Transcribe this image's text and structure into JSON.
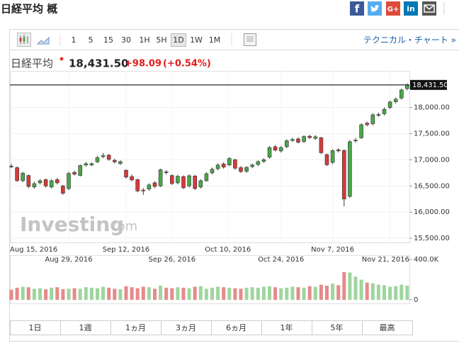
{
  "header": {
    "title": "日経平均 概",
    "share_labels": [
      "f",
      "G+",
      "in"
    ]
  },
  "toolbar": {
    "intervals": [
      "1",
      "5",
      "15",
      "30",
      "1H",
      "5H",
      "1D",
      "1W",
      "1M"
    ],
    "selected": "1D",
    "link": "テクニカル・チャート »"
  },
  "quote": {
    "name": "日経平均",
    "price": "18,431.50",
    "change": "+98.09",
    "change_percent": "(+0.54%)"
  },
  "chart_data": {
    "type": "candlestick",
    "x": [
      "2016-08-15",
      "2016-08-16",
      "2016-08-17",
      "2016-08-18",
      "2016-08-19",
      "2016-08-22",
      "2016-08-23",
      "2016-08-24",
      "2016-08-25",
      "2016-08-26",
      "2016-08-29",
      "2016-08-30",
      "2016-08-31",
      "2016-09-01",
      "2016-09-02",
      "2016-09-05",
      "2016-09-06",
      "2016-09-07",
      "2016-09-08",
      "2016-09-09",
      "2016-09-12",
      "2016-09-13",
      "2016-09-14",
      "2016-09-15",
      "2016-09-16",
      "2016-09-20",
      "2016-09-21",
      "2016-09-23",
      "2016-09-26",
      "2016-09-27",
      "2016-09-28",
      "2016-09-29",
      "2016-09-30",
      "2016-10-03",
      "2016-10-04",
      "2016-10-05",
      "2016-10-06",
      "2016-10-07",
      "2016-10-11",
      "2016-10-12",
      "2016-10-13",
      "2016-10-14",
      "2016-10-17",
      "2016-10-18",
      "2016-10-19",
      "2016-10-20",
      "2016-10-21",
      "2016-10-24",
      "2016-10-25",
      "2016-10-26",
      "2016-10-27",
      "2016-10-28",
      "2016-10-31",
      "2016-11-01",
      "2016-11-02",
      "2016-11-04",
      "2016-11-07",
      "2016-11-08",
      "2016-11-09",
      "2016-11-10",
      "2016-11-11",
      "2016-11-14",
      "2016-11-15",
      "2016-11-16",
      "2016-11-17",
      "2016-11-18",
      "2016-11-21",
      "2016-11-22",
      "2016-11-24",
      "2016-11-25"
    ],
    "open": [
      16880,
      16850,
      16600,
      16700,
      16480,
      16560,
      16620,
      16480,
      16620,
      16500,
      16450,
      16760,
      16700,
      16900,
      16900,
      16960,
      17060,
      17090,
      16990,
      16930,
      16800,
      16680,
      16620,
      16420,
      16440,
      16560,
      16500,
      16770,
      16700,
      16560,
      16680,
      16500,
      16690,
      16480,
      16600,
      16750,
      16830,
      16920,
      16900,
      17000,
      16850,
      16780,
      16870,
      16910,
      16970,
      17050,
      17250,
      17170,
      17250,
      17370,
      17400,
      17350,
      17450,
      17410,
      17420,
      17100,
      16950,
      17190,
      17180,
      16300,
      17370,
      17420,
      17700,
      17690,
      17850,
      17880,
      18000,
      18110,
      18180,
      18360
    ],
    "high": [
      16920,
      16870,
      16770,
      16720,
      16580,
      16630,
      16640,
      16630,
      16650,
      16520,
      16770,
      16790,
      16910,
      16960,
      16950,
      17070,
      17130,
      17110,
      17020,
      16990,
      16820,
      16720,
      16640,
      16460,
      16550,
      16590,
      16830,
      16800,
      16720,
      16710,
      16700,
      16720,
      16710,
      16630,
      16760,
      16850,
      16930,
      16950,
      17050,
      17020,
      16880,
      16880,
      16930,
      16990,
      17030,
      17260,
      17280,
      17260,
      17390,
      17420,
      17430,
      17470,
      17480,
      17470,
      17440,
      17120,
      17200,
      17220,
      17200,
      17380,
      17420,
      17700,
      17730,
      17890,
      17900,
      18000,
      18130,
      18190,
      18360,
      18460
    ],
    "low": [
      16840,
      16580,
      16570,
      16460,
      16450,
      16530,
      16470,
      16450,
      16530,
      16330,
      16420,
      16700,
      16680,
      16870,
      16880,
      16940,
      17030,
      16980,
      16930,
      16900,
      16640,
      16590,
      16380,
      16330,
      16410,
      16460,
      16480,
      16720,
      16520,
      16530,
      16440,
      16470,
      16420,
      16450,
      16580,
      16720,
      16800,
      16830,
      16880,
      16810,
      16750,
      16750,
      16840,
      16880,
      16940,
      17020,
      17160,
      17140,
      17220,
      17340,
      17310,
      17320,
      17400,
      17380,
      17110,
      16880,
      16920,
      17140,
      16110,
      16270,
      17330,
      17400,
      17640,
      17660,
      17820,
      17850,
      17970,
      18080,
      18150,
      18330
    ],
    "close": [
      16870,
      16600,
      16745,
      16490,
      16545,
      16600,
      16500,
      16600,
      16560,
      16360,
      16740,
      16725,
      16890,
      16925,
      16925,
      17040,
      17080,
      17010,
      16960,
      16965,
      16670,
      16615,
      16405,
      16405,
      16520,
      16490,
      16810,
      16755,
      16545,
      16685,
      16465,
      16695,
      16450,
      16600,
      16735,
      16820,
      16900,
      16860,
      17025,
      16840,
      16775,
      16855,
      16900,
      16965,
      17000,
      17235,
      17185,
      17235,
      17365,
      17390,
      17335,
      17445,
      17425,
      17440,
      17135,
      16905,
      17175,
      17170,
      16250,
      17345,
      17375,
      17670,
      17670,
      17860,
      17865,
      17965,
      18105,
      18160,
      18335,
      18431.5
    ],
    "volume": [
      100000,
      120000,
      130000,
      125000,
      110000,
      115000,
      105000,
      120000,
      125000,
      105000,
      110000,
      115000,
      110000,
      125000,
      120000,
      115000,
      130000,
      120000,
      110000,
      105000,
      135000,
      125000,
      115000,
      130000,
      125000,
      110000,
      140000,
      120000,
      115000,
      125000,
      120000,
      115000,
      130000,
      135000,
      110000,
      120000,
      130000,
      125000,
      120000,
      115000,
      110000,
      120000,
      125000,
      120000,
      130000,
      135000,
      125000,
      115000,
      120000,
      130000,
      125000,
      120000,
      135000,
      130000,
      150000,
      140000,
      160000,
      145000,
      275000,
      270000,
      230000,
      200000,
      170000,
      165000,
      150000,
      145000,
      130000,
      135000,
      150000,
      140000
    ],
    "ylim": [
      15420,
      18700
    ],
    "yticks": [
      {
        "value": 15500,
        "label": "15,500.00"
      },
      {
        "value": 16000,
        "label": "16,000.00"
      },
      {
        "value": 16500,
        "label": "16,500.00"
      },
      {
        "value": 17000,
        "label": "17,000.00"
      },
      {
        "value": 17500,
        "label": "17,500.00"
      },
      {
        "value": 18000,
        "label": "18,000.00"
      }
    ],
    "volume_ylim": [
      0,
      400000
    ],
    "volume_yticks": [
      {
        "value": 400000,
        "label": "400.0K"
      },
      0
    ],
    "xticks": [
      {
        "value": "2016-08-15",
        "label": "Aug 15, 2016"
      },
      {
        "value": "2016-08-29",
        "label": "Aug 29, 2016"
      },
      {
        "value": "2016-09-12",
        "label": "Sep 12, 2016"
      },
      {
        "value": "2016-09-26",
        "label": "Sep 26, 2016"
      },
      {
        "value": "2016-10-10",
        "label": "Oct 10, 2016"
      },
      {
        "value": "2016-10-24",
        "label": "Oct 24, 2016"
      },
      {
        "value": "2016-11-07",
        "label": "Nov 7, 2016"
      },
      {
        "value": "2016-11-21",
        "label": "Nov 21, 2016"
      }
    ],
    "last_price": {
      "value": 18431.5,
      "label": "18,431.50"
    },
    "colors": {
      "up": "#4aa64a",
      "down": "#d63a3a",
      "volume_up": "#9fd59f",
      "volume_down": "#e58a8a"
    },
    "grid": true,
    "watermark": {
      "brand": "Investing",
      "domain": ".com"
    }
  },
  "ranges": [
    "1日",
    "1週",
    "1ヵ月",
    "3ヵ月",
    "6ヵ月",
    "1年",
    "5年",
    "最高"
  ]
}
